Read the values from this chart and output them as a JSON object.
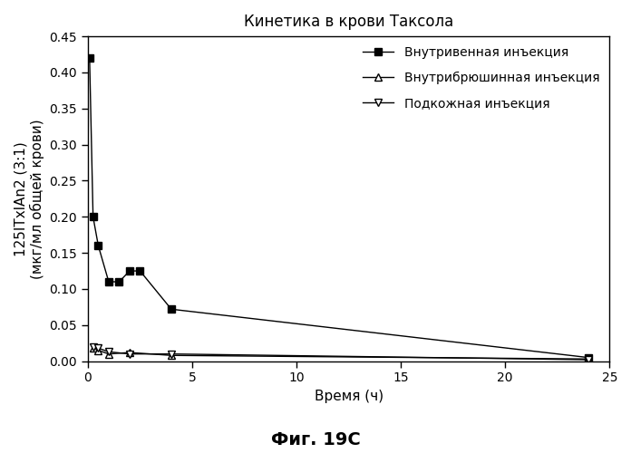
{
  "title": "Кинетика в крови Таксола",
  "xlabel": "Время (ч)",
  "ylabel_line1": "125ITxlAn2 (3:1)",
  "ylabel_line2": "(мкг/мл общей крови)",
  "caption": "Фиг. 19С",
  "xlim": [
    0,
    25
  ],
  "ylim": [
    0,
    0.45
  ],
  "yticks": [
    0.0,
    0.05,
    0.1,
    0.15,
    0.2,
    0.25,
    0.3,
    0.35,
    0.4,
    0.45
  ],
  "xticks": [
    0,
    5,
    10,
    15,
    20,
    25
  ],
  "iv_x": [
    0.083,
    0.25,
    0.5,
    1.0,
    1.5,
    2.0,
    2.5,
    4.0,
    24.0
  ],
  "iv_y": [
    0.42,
    0.2,
    0.16,
    0.11,
    0.11,
    0.125,
    0.125,
    0.072,
    0.005
  ],
  "ip_x": [
    0.25,
    0.5,
    1.0,
    2.0,
    4.0,
    24.0
  ],
  "ip_y": [
    0.018,
    0.015,
    0.01,
    0.012,
    0.008,
    0.003
  ],
  "sc_x": [
    0.25,
    0.5,
    1.0,
    2.0,
    4.0,
    24.0
  ],
  "sc_y": [
    0.02,
    0.018,
    0.013,
    0.01,
    0.01,
    0.002
  ],
  "legend_iv": "Внутривенная инъекция",
  "legend_ip": "Внутрибрюшинная инъекция",
  "legend_sc": "Подкожная инъекция",
  "line_color": "#000000",
  "bg_color": "#ffffff",
  "title_fontsize": 12,
  "label_fontsize": 11,
  "tick_fontsize": 10,
  "legend_fontsize": 10,
  "caption_fontsize": 14
}
